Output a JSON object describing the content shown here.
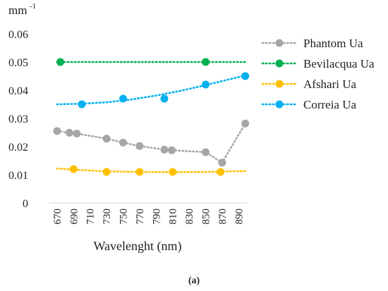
{
  "caption": "(a)",
  "chart_data": {
    "type": "scatter",
    "ylabel_prefix": "mm",
    "ylabel_sup": "-1",
    "xlabel": "Wavelenght (nm)",
    "x_ticks": [
      670,
      690,
      710,
      730,
      750,
      770,
      790,
      810,
      830,
      850,
      870,
      890
    ],
    "y_ticks": [
      "0",
      "0.01",
      "0.02",
      "0.03",
      "0.04",
      "0.05",
      "0.06"
    ],
    "xlim": [
      665,
      900
    ],
    "ylim": [
      0,
      0.06
    ],
    "grid": false,
    "legend_position": "right",
    "series": [
      {
        "name": "Phantom Ua",
        "color": "#a6a6a6",
        "x": [
          670,
          685,
          694,
          730,
          750,
          770,
          800,
          809,
          850,
          870,
          898
        ],
        "y": [
          0.0255,
          0.0249,
          0.0246,
          0.0228,
          0.0214,
          0.0202,
          0.0189,
          0.0187,
          0.018,
          0.0143,
          0.0282
        ],
        "trend": [
          [
            670,
            0.0255
          ],
          [
            685,
            0.0249
          ],
          [
            694,
            0.0246
          ],
          [
            730,
            0.0228
          ],
          [
            750,
            0.0214
          ],
          [
            770,
            0.0202
          ],
          [
            800,
            0.0189
          ],
          [
            809,
            0.0187
          ],
          [
            850,
            0.018
          ],
          [
            870,
            0.0143
          ],
          [
            898,
            0.0282
          ]
        ]
      },
      {
        "name": "Bevilacqua Ua",
        "color": "#00b050",
        "x": [
          674,
          850
        ],
        "y": [
          0.05,
          0.05
        ],
        "trend": [
          [
            670,
            0.05
          ],
          [
            898,
            0.05
          ]
        ]
      },
      {
        "name": "Afshari Ua",
        "color": "#ffc000",
        "x": [
          690,
          730,
          770,
          810,
          868
        ],
        "y": [
          0.012,
          0.011,
          0.011,
          0.011,
          0.011
        ],
        "trend": [
          [
            670,
            0.0122
          ],
          [
            690,
            0.0118
          ],
          [
            710,
            0.0115
          ],
          [
            730,
            0.0112
          ],
          [
            770,
            0.011
          ],
          [
            810,
            0.0109
          ],
          [
            850,
            0.011
          ],
          [
            898,
            0.0113
          ]
        ]
      },
      {
        "name": "Correia Ua",
        "color": "#00b0f0",
        "x": [
          700,
          750,
          800,
          850,
          898
        ],
        "y": [
          0.035,
          0.037,
          0.037,
          0.042,
          0.045
        ],
        "trend": [
          [
            670,
            0.035
          ],
          [
            700,
            0.0352
          ],
          [
            730,
            0.0357
          ],
          [
            760,
            0.0367
          ],
          [
            790,
            0.0381
          ],
          [
            820,
            0.0398
          ],
          [
            850,
            0.0418
          ],
          [
            875,
            0.0436
          ],
          [
            898,
            0.0452
          ]
        ]
      }
    ]
  }
}
